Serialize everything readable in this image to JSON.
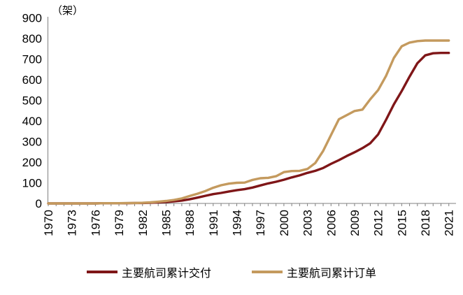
{
  "chart": {
    "unit_label": "（架）"
  },
  "legend": {
    "items": [
      {
        "label": "主要航司累计交付",
        "color": "#7f1618"
      },
      {
        "label": "主要航司累计订单",
        "color": "#c49a5e"
      }
    ]
  },
  "chart_data": {
    "type": "line",
    "title": "",
    "xlabel": "",
    "ylabel": "（架）",
    "ylim": [
      0,
      900
    ],
    "ytick_step": 100,
    "x_start": 1970,
    "x_end": 2021,
    "xtick_label_step": 3,
    "grid": false,
    "legend_position": "bottom",
    "axis_color": "#808080",
    "x": [
      1970,
      1971,
      1972,
      1973,
      1974,
      1975,
      1976,
      1977,
      1978,
      1979,
      1980,
      1981,
      1982,
      1983,
      1984,
      1985,
      1986,
      1987,
      1988,
      1989,
      1990,
      1991,
      1992,
      1993,
      1994,
      1995,
      1996,
      1997,
      1998,
      1999,
      2000,
      2001,
      2002,
      2003,
      2004,
      2005,
      2006,
      2007,
      2008,
      2009,
      2010,
      2011,
      2012,
      2013,
      2014,
      2015,
      2016,
      2017,
      2018,
      2019,
      2020,
      2021
    ],
    "series": [
      {
        "name": "主要航司累计交付",
        "color": "#7f1618",
        "values": [
          0,
          0,
          0,
          0,
          0,
          0,
          0,
          1,
          1,
          1,
          1,
          2,
          2,
          3,
          5,
          7,
          10,
          14,
          20,
          28,
          37,
          45,
          51,
          58,
          64,
          69,
          77,
          87,
          97,
          105,
          115,
          126,
          136,
          148,
          158,
          172,
          192,
          210,
          230,
          248,
          268,
          292,
          335,
          405,
          480,
          545,
          615,
          680,
          718,
          728,
          730,
          730
        ]
      },
      {
        "name": "主要航司累计订单",
        "color": "#c49a5e",
        "values": [
          0,
          0,
          0,
          0,
          0,
          0,
          0,
          1,
          1,
          1,
          2,
          2,
          3,
          5,
          8,
          12,
          17,
          24,
          36,
          47,
          60,
          76,
          88,
          96,
          100,
          101,
          114,
          122,
          124,
          132,
          152,
          157,
          158,
          167,
          196,
          255,
          332,
          408,
          428,
          448,
          455,
          505,
          550,
          618,
          705,
          762,
          780,
          787,
          790,
          790,
          790,
          790
        ]
      }
    ]
  }
}
